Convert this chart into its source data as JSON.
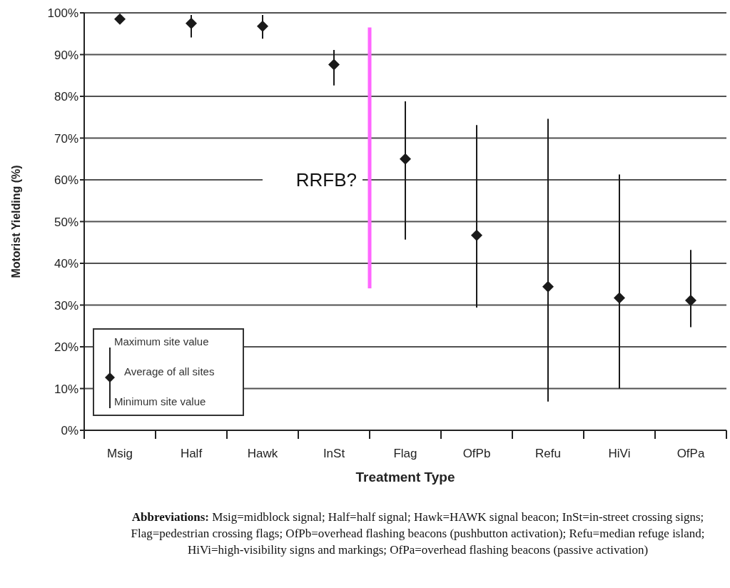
{
  "chart_data": {
    "type": "scatter",
    "xlabel": "Treatment Type",
    "ylabel": "Motorist Yielding (%)",
    "categories": [
      "Msig",
      "Half",
      "Hawk",
      "InSt",
      "Flag",
      "OfPb",
      "Refu",
      "HiVi",
      "OfPa"
    ],
    "series": [
      {
        "name": "Average of all sites",
        "color": "#1a1a1a",
        "values": [
          98.5,
          97.5,
          96.8,
          87.6,
          65.0,
          46.7,
          34.4,
          31.7,
          31.1
        ],
        "errors": [
          null,
          [
            94.1,
            99.5
          ],
          [
            93.8,
            99.5
          ],
          [
            82.6,
            91.1
          ],
          [
            45.7,
            78.8
          ],
          [
            29.4,
            73.1
          ],
          [
            6.9,
            74.6
          ],
          [
            10,
            61.3
          ],
          [
            24.7,
            43.2
          ]
        ]
      }
    ],
    "marker": "diamond",
    "ylim": [
      0,
      100
    ],
    "yticks": [
      {
        "value": 0,
        "label": "0%"
      },
      {
        "value": 10,
        "label": "10%"
      },
      {
        "value": 20,
        "label": "20%"
      },
      {
        "value": 30,
        "label": "30%"
      },
      {
        "value": 40,
        "label": "40%"
      },
      {
        "value": 50,
        "label": "50%"
      },
      {
        "value": 60,
        "label": "60%"
      },
      {
        "value": 70,
        "label": "70%"
      },
      {
        "value": 80,
        "label": "80%"
      },
      {
        "value": 90,
        "label": "90%"
      },
      {
        "value": 100,
        "label": "100%"
      }
    ],
    "grid": "y",
    "legend": "bottom left",
    "annotations": [
      "Maximum site value",
      "Minimum site value",
      "RRFB?",
      "Abbreviations: Msig=midblock signal; Half=half signal; Hawk=HAWK signal beacon; InSt=in-street crossing signs; Flag=pedestrian crossing flags; OfPb=overhead flashing beacons (pushbutton activation); Refu=median refuge island; HiVi=high-visibility signs and markings; OfPa=overhead flashing beacons (passive activation)"
    ]
  }
}
